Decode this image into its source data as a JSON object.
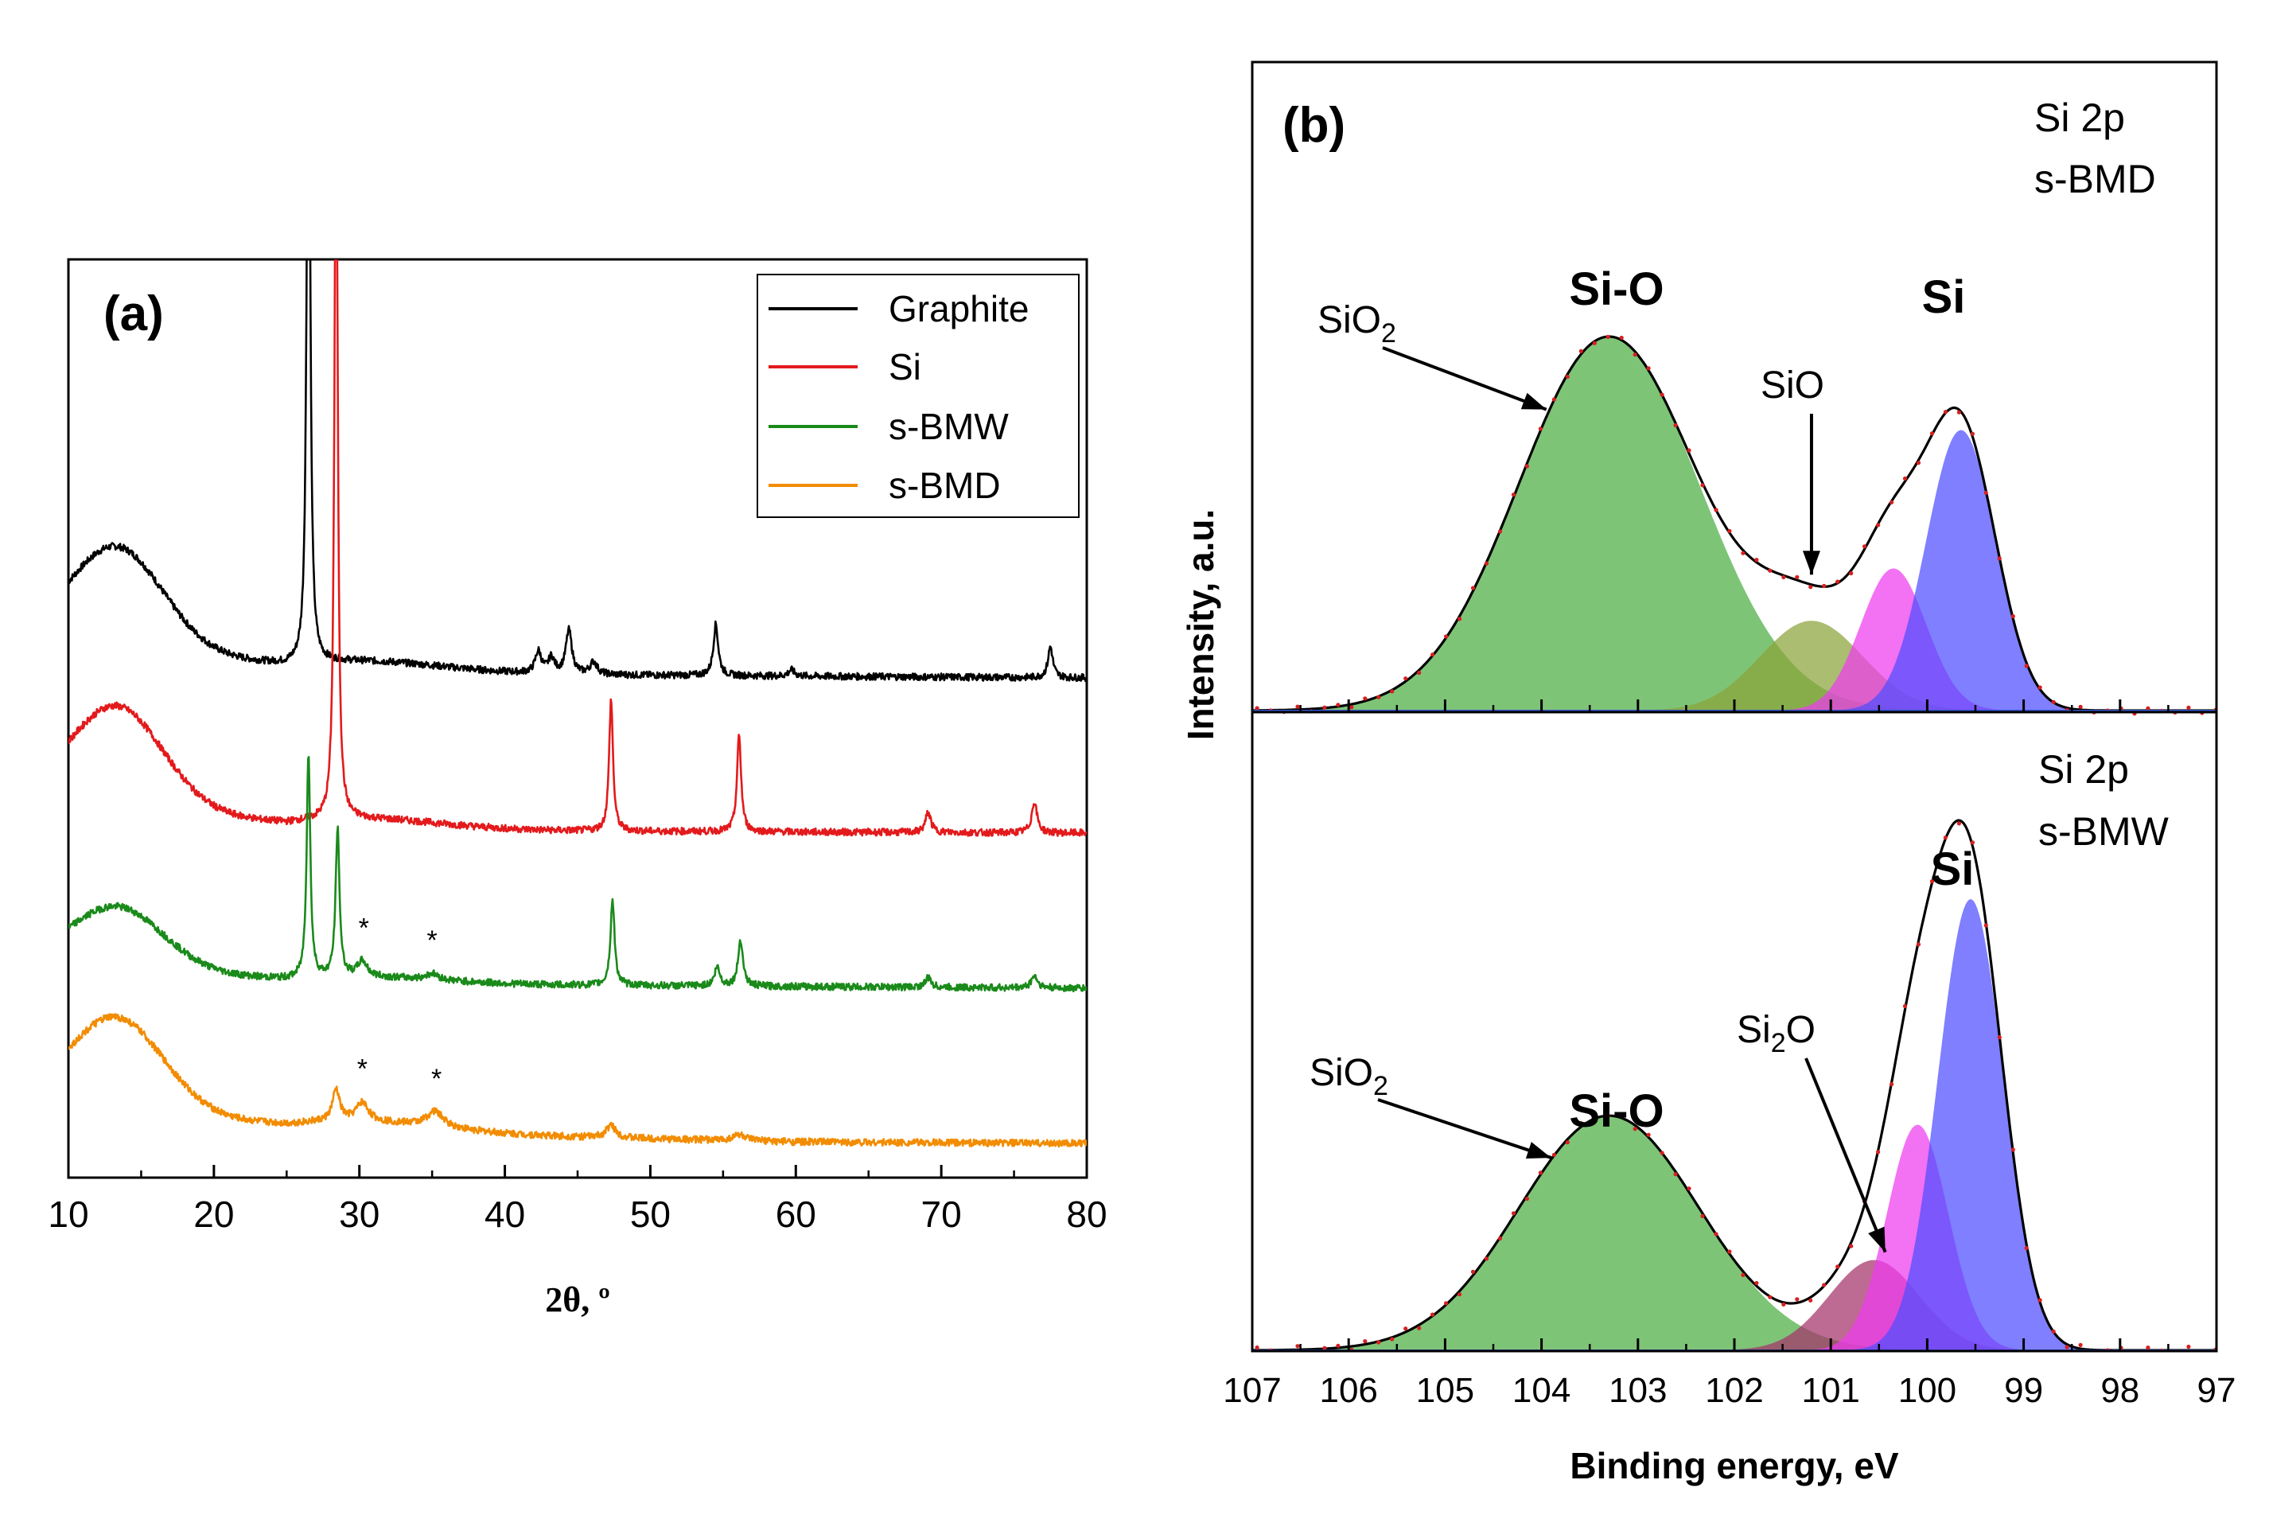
{
  "chart_data": [
    {
      "panel": "(a)",
      "type": "line",
      "xlabel": "2θ, º",
      "ylabel": "",
      "xlim": [
        10,
        80
      ],
      "xticks": [
        10,
        20,
        30,
        40,
        50,
        60,
        70,
        80
      ],
      "legend_position": "top-right",
      "star_label": "*",
      "series": [
        {
          "name": "Graphite",
          "color": "#000000",
          "offset": 3.0,
          "hump": {
            "center": 13.4,
            "width": 4.4,
            "height": 0.62
          },
          "baseline": [
            [
              10,
              0.28
            ],
            [
              25,
              0.04
            ],
            [
              45,
              0.02
            ],
            [
              80,
              0.0
            ]
          ],
          "peaks": [
            [
              26.5,
              5.0,
              0.13
            ],
            [
              42.3,
              0.14,
              0.25
            ],
            [
              43.2,
              0.1,
              0.25
            ],
            [
              44.4,
              0.28,
              0.25
            ],
            [
              46.1,
              0.08,
              0.3
            ],
            [
              54.5,
              0.33,
              0.2
            ],
            [
              59.7,
              0.04,
              0.25
            ],
            [
              77.5,
              0.2,
              0.2
            ]
          ],
          "stars": []
        },
        {
          "name": "Si",
          "color": "#e31a1c",
          "offset": 2.0,
          "hump": {
            "center": 13.4,
            "width": 4.4,
            "height": 0.62
          },
          "baseline": [
            [
              10,
              0.25
            ],
            [
              25,
              0.02
            ],
            [
              80,
              0.0
            ]
          ],
          "peaks": [
            [
              28.4,
              5.0,
              0.13
            ],
            [
              47.3,
              0.85,
              0.16
            ],
            [
              56.1,
              0.62,
              0.17
            ],
            [
              69.1,
              0.13,
              0.22
            ],
            [
              76.4,
              0.2,
              0.22
            ]
          ],
          "stars": []
        },
        {
          "name": "s-BMW",
          "color": "#1a8a1a",
          "offset": 1.0,
          "hump": {
            "center": 13.4,
            "width": 4.4,
            "height": 0.38
          },
          "baseline": [
            [
              10,
              0.18
            ],
            [
              25,
              0.03
            ],
            [
              80,
              0.0
            ]
          ],
          "peaks": [
            [
              26.5,
              1.45,
              0.15
            ],
            [
              28.5,
              0.95,
              0.16
            ],
            [
              30.2,
              0.1,
              0.4
            ],
            [
              35.0,
              0.04,
              0.5
            ],
            [
              47.4,
              0.55,
              0.17
            ],
            [
              54.6,
              0.12,
              0.22
            ],
            [
              56.2,
              0.3,
              0.2
            ],
            [
              69.1,
              0.06,
              0.25
            ],
            [
              76.4,
              0.08,
              0.25
            ]
          ],
          "stars": [
            30.3,
            35.0
          ]
        },
        {
          "name": "s-BMD",
          "color": "#f28c00",
          "offset": 0.0,
          "hump": {
            "center": 13.3,
            "width": 4.6,
            "height": 0.6
          },
          "baseline": [
            [
              10,
              0.25
            ],
            [
              25,
              0.08
            ],
            [
              40,
              0.05
            ],
            [
              60,
              0.01
            ],
            [
              80,
              0.0
            ]
          ],
          "peaks": [
            [
              28.4,
              0.2,
              0.3
            ],
            [
              30.2,
              0.12,
              0.5
            ],
            [
              35.2,
              0.1,
              0.7
            ],
            [
              47.3,
              0.08,
              0.4
            ],
            [
              56.1,
              0.04,
              0.5
            ]
          ],
          "stars": [
            30.2,
            35.3
          ]
        }
      ]
    },
    {
      "panel": "(b)",
      "type": "area",
      "xlabel": "Binding energy, eV",
      "ylabel": "Intensity, a.u.",
      "xlim": [
        107,
        97
      ],
      "xticks": [
        107,
        106,
        105,
        104,
        103,
        102,
        101,
        100,
        99,
        98,
        97
      ],
      "subplots": [
        {
          "id": "top",
          "label_line1": "Si 2p",
          "label_line2": "s-BMD",
          "peak_labels": {
            "si_o": "Si-O",
            "si": "Si"
          },
          "annotations": [
            {
              "text": "SiO",
              "sub": "2",
              "target_x": 103.9
            },
            {
              "text": "SiO",
              "sub": "",
              "target_x": 101.2
            }
          ],
          "components": [
            {
              "name": "SiO2",
              "center": 103.3,
              "fwhm": 2.2,
              "height": 1.0,
              "color": "#4cad43"
            },
            {
              "name": "SiO",
              "center": 101.2,
              "fwhm": 1.25,
              "height": 0.24,
              "color": "#8aa33a"
            },
            {
              "name": "Si2O",
              "center": 100.35,
              "fwhm": 0.8,
              "height": 0.38,
              "color": "#ee3aee"
            },
            {
              "name": "Si",
              "center": 99.65,
              "fwhm": 0.85,
              "height": 0.75,
              "color": "#4d4dff"
            }
          ]
        },
        {
          "id": "bottom",
          "label_line1": "Si 2p",
          "label_line2": "s-BMW",
          "peak_labels": {
            "si_o": "Si-O",
            "si": "Si"
          },
          "annotations": [
            {
              "text": "SiO",
              "sub": "2",
              "target_x": 103.85
            },
            {
              "text": "Si",
              "sub": "2",
              "suffix": "O",
              "target_x": 100.55
            }
          ],
          "components": [
            {
              "name": "SiO2",
              "center": 103.3,
              "fwhm": 2.2,
              "height": 0.52,
              "color": "#4cad43"
            },
            {
              "name": "Si2O",
              "center": 100.55,
              "fwhm": 1.1,
              "height": 0.2,
              "color": "#a3326a"
            },
            {
              "name": "SiO",
              "center": 100.1,
              "fwhm": 0.75,
              "height": 0.5,
              "color": "#ee3aee"
            },
            {
              "name": "Si",
              "center": 99.55,
              "fwhm": 0.8,
              "height": 1.0,
              "color": "#4d4dff"
            }
          ]
        }
      ]
    }
  ]
}
